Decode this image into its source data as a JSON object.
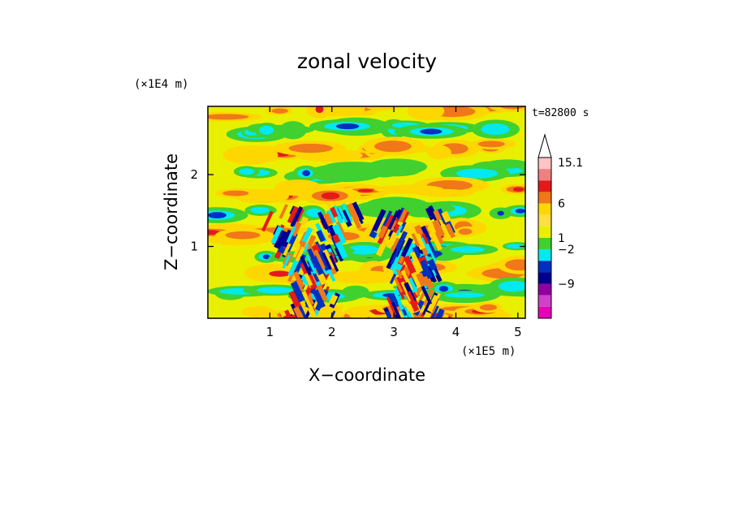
{
  "chart_data": {
    "type": "heatmap",
    "title": "zonal velocity",
    "xlabel": "X−coordinate",
    "ylabel": "Z−coordinate",
    "x_scale_label": "(×1E5 m)",
    "y_scale_label": "(×1E4 m)",
    "time_label": "t=82800 s",
    "xlim": [
      0,
      5.12
    ],
    "ylim": [
      0,
      2.95
    ],
    "x_ticks": [
      1,
      2,
      3,
      4,
      5
    ],
    "x_tick_labels": [
      "1",
      "2",
      "3",
      "4",
      "5"
    ],
    "y_ticks": [
      1,
      2
    ],
    "y_tick_labels": [
      "1",
      "2"
    ],
    "colorbar": {
      "label_values": [
        "15.1",
        "6",
        "1",
        "−2",
        "−9"
      ],
      "bands_top_to_bottom": [
        "#ffc4c4",
        "#f08080",
        "#e41a1a",
        "#f07818",
        "#ffd700",
        "#ffe040",
        "#e8f000",
        "#40d030",
        "#00e8f0",
        "#0030c0",
        "#000090",
        "#9000a0",
        "#d040c8",
        "#e800b8"
      ]
    },
    "field_colors": {
      "strong_pos": "#e41a1a",
      "pos": "#f07818",
      "weak_pos": "#ffd700",
      "near_zero": "#e8f000",
      "weak_neg": "#40d030",
      "neg": "#00e8f0",
      "strong_neg": "#0030c0",
      "very_strong_neg": "#000090"
    },
    "field_pattern": {
      "background_level": "near_zero",
      "dominant_structures": "horizontal alternating bands of positive and negative zonal velocity with two slanted wave packets near x = 1.6 and x = 3.3"
    }
  }
}
